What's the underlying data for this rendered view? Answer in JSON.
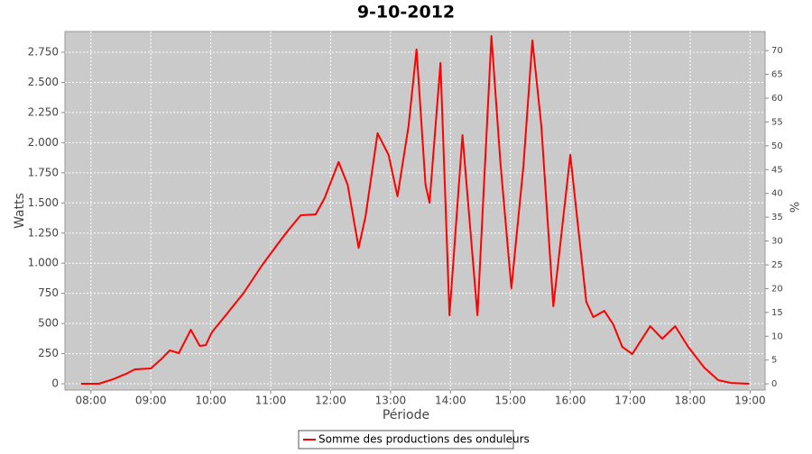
{
  "chart_data": {
    "type": "line",
    "title": "9-10-2012",
    "xlabel": "Période",
    "ylabel": "Watts",
    "y2label": "%",
    "x": [
      470,
      488,
      502,
      515,
      524,
      540,
      551,
      559,
      568,
      580,
      589,
      595,
      601,
      615,
      633,
      651,
      669,
      678,
      690,
      705,
      714,
      728,
      737,
      748,
      755,
      767,
      778,
      787,
      798,
      806,
      815,
      819,
      830,
      839,
      852,
      867,
      881,
      890,
      901,
      913,
      922,
      931,
      943,
      960,
      976,
      983,
      994,
      1003,
      1012,
      1022,
      1040,
      1052,
      1065,
      1078,
      1094,
      1108,
      1121,
      1139
    ],
    "series": [
      {
        "name": "Somme des productions des onduleurs",
        "color": "#ff0000",
        "values": [
          0,
          0,
          37,
          82,
          120,
          127,
          209,
          277,
          254,
          448,
          314,
          321,
          426,
          568,
          755,
          979,
          1181,
          1278,
          1398,
          1405,
          1540,
          1839,
          1652,
          1128,
          1390,
          2078,
          1898,
          1555,
          2137,
          2773,
          1652,
          1502,
          2661,
          568,
          2063,
          568,
          2885,
          1839,
          792,
          1801,
          2848,
          2138,
          643,
          1898,
          680,
          553,
          605,
          493,
          306,
          247,
          478,
          374,
          478,
          306,
          135,
          30,
          7,
          0
        ]
      }
    ],
    "xlim": [
      454,
      1155
    ],
    "xticks": [
      {
        "value": 480,
        "label": "08:00"
      },
      {
        "value": 540,
        "label": "09:00"
      },
      {
        "value": 600,
        "label": "10:00"
      },
      {
        "value": 660,
        "label": "11:00"
      },
      {
        "value": 720,
        "label": "12:00"
      },
      {
        "value": 780,
        "label": "13:00"
      },
      {
        "value": 840,
        "label": "14:00"
      },
      {
        "value": 900,
        "label": "15:00"
      },
      {
        "value": 960,
        "label": "16:00"
      },
      {
        "value": 1020,
        "label": "17:00"
      },
      {
        "value": 1080,
        "label": "18:00"
      },
      {
        "value": 1140,
        "label": "19:00"
      }
    ],
    "ylim": [
      -52,
      2922
    ],
    "yticks": [
      0,
      250,
      500,
      750,
      {
        "value": 1000,
        "label": "1.000"
      },
      {
        "value": 1250,
        "label": "1.250"
      },
      {
        "value": 1500,
        "label": "1.500"
      },
      {
        "value": 1750,
        "label": "1.750"
      },
      {
        "value": 2000,
        "label": "2.000"
      },
      {
        "value": 2250,
        "label": "2.250"
      },
      {
        "value": 2500,
        "label": "2.500"
      },
      {
        "value": 2750,
        "label": "2.750"
      }
    ],
    "y2lim": [
      -1.3,
      74
    ],
    "y2ticks": [
      0,
      5,
      10,
      15,
      20,
      25,
      30,
      35,
      40,
      45,
      50,
      55,
      60,
      65,
      70
    ],
    "grid": true
  }
}
